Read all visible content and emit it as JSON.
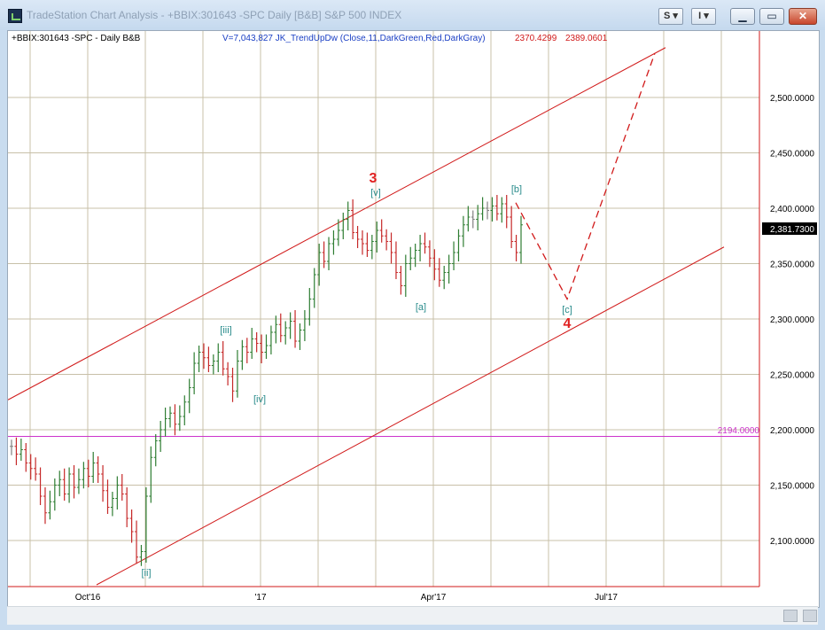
{
  "window": {
    "title": "TradeStation Chart Analysis - +BBIX:301643 -SPC Daily [B&B] S&P 500 INDEX",
    "toolbar_buttons": [
      "S",
      "I"
    ],
    "minimize_icon": "minimize-icon",
    "restore_icon": "restore-icon",
    "close_icon": "close-icon"
  },
  "header": {
    "symbol": "+BBIX:301643 -SPC - Daily  B&B",
    "indicator": "V=7,043,827  JK_TrendUpDw (Close,11,DarkGreen,Red,DarkGray)",
    "value1": "2370.4299",
    "value2": "2389.0601"
  },
  "colors": {
    "channel": "#d11a1a",
    "bull_bar": "#2e7d32",
    "bear_bar": "#c62828",
    "neutral_bar": "#808080",
    "wave_label": "#2a8c8c",
    "major_label": "#e02020",
    "support_line": "#cc33cc",
    "grid": "#c8c0a8"
  },
  "price_axis": {
    "labels": [
      "2,500.0000",
      "2,450.0000",
      "2,400.0000",
      "2,350.0000",
      "2,300.0000",
      "2,250.0000",
      "2,200.0000",
      "2,150.0000",
      "2,100.0000"
    ],
    "last_price": "2,381.7300",
    "support_label": "2194.0000"
  },
  "time_axis": {
    "labels": [
      "Oct'16",
      "'17",
      "Apr'17",
      "Jul'17"
    ]
  },
  "wave_labels": {
    "w3": "3",
    "w4": "4",
    "v": "[v]",
    "iii": "[iii]",
    "iv": "[iv]",
    "ii": "[ii]",
    "a": "[a]",
    "b": "[b]",
    "c": "[c]"
  },
  "chart_data": {
    "type": "ohlc",
    "title": "+BBIX:301643 -SPC - Daily  B&B",
    "ylim": [
      2060,
      2550
    ],
    "y_ticks": [
      2100,
      2150,
      2200,
      2250,
      2300,
      2350,
      2400,
      2450,
      2500
    ],
    "support_level": 2194.0,
    "last_price": 2381.73,
    "x_labels": [
      "Oct'16",
      "'17",
      "Apr'17",
      "Jul'17"
    ],
    "price_path": [
      2185,
      2178,
      2182,
      2170,
      2165,
      2160,
      2140,
      2125,
      2135,
      2150,
      2155,
      2142,
      2160,
      2148,
      2155,
      2165,
      2158,
      2170,
      2160,
      2145,
      2130,
      2138,
      2150,
      2142,
      2120,
      2108,
      2085,
      2090,
      2140,
      2175,
      2190,
      2200,
      2210,
      2215,
      2205,
      2212,
      2225,
      2238,
      2260,
      2270,
      2265,
      2258,
      2262,
      2270,
      2255,
      2248,
      2235,
      2262,
      2275,
      2270,
      2282,
      2278,
      2270,
      2276,
      2288,
      2295,
      2285,
      2292,
      2298,
      2280,
      2290,
      2300,
      2318,
      2340,
      2360,
      2352,
      2368,
      2372,
      2380,
      2390,
      2398,
      2378,
      2372,
      2368,
      2362,
      2370,
      2380,
      2375,
      2370,
      2360,
      2342,
      2330,
      2350,
      2355,
      2362,
      2368,
      2365,
      2355,
      2345,
      2335,
      2342,
      2350,
      2360,
      2375,
      2385,
      2392,
      2390,
      2395,
      2400,
      2398,
      2402,
      2395,
      2404,
      2392,
      2370,
      2360,
      2385
    ],
    "projection": {
      "low": 2318,
      "high": 2540
    },
    "channel": {
      "upper_start": 2227,
      "upper_end": 2545,
      "lower_start": 2060,
      "lower_end": 2365
    },
    "wave_labels": [
      "[ii]",
      "[iii]",
      "[iv]",
      "3",
      "[v]",
      "[a]",
      "[b]",
      "[c]",
      "4"
    ]
  }
}
